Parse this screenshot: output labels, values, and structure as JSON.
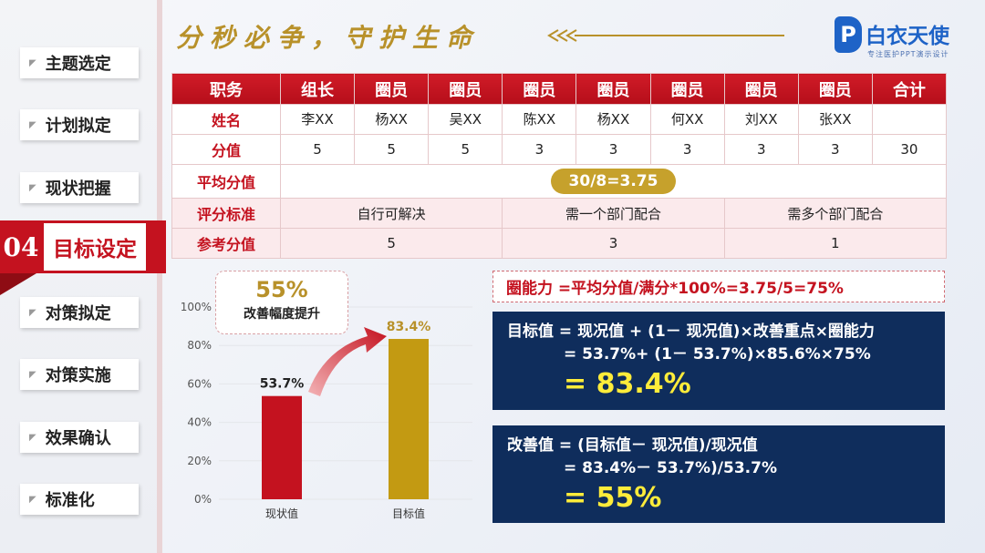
{
  "sidebar": {
    "items": [
      {
        "label": "主题选定"
      },
      {
        "label": "计划拟定"
      },
      {
        "label": "现状把握"
      },
      {
        "label": "目标设定",
        "number": "04"
      },
      {
        "label": "对策拟定"
      },
      {
        "label": "对策实施"
      },
      {
        "label": "效果确认"
      },
      {
        "label": "标准化"
      }
    ]
  },
  "header": {
    "slogan": "分秒必争，守护生命",
    "logo": {
      "badge": "P",
      "title": "白衣天使",
      "subtitle": "专注医护PPT演示设计"
    }
  },
  "table": {
    "header": [
      "职务",
      "组长",
      "圈员",
      "圈员",
      "圈员",
      "圈员",
      "圈员",
      "圈员",
      "圈员",
      "合计"
    ],
    "names_label": "姓名",
    "names": [
      "李XX",
      "杨XX",
      "吴XX",
      "陈XX",
      "杨XX",
      "何XX",
      "刘XX",
      "张XX",
      ""
    ],
    "scores_label": "分值",
    "scores": [
      "5",
      "5",
      "5",
      "3",
      "3",
      "3",
      "3",
      "3",
      "30"
    ],
    "avg_label": "平均分值",
    "avg_value": "30/8=3.75",
    "criteria_label": "评分标准",
    "criteria": [
      "自行可解决",
      "需一个部门配合",
      "需多个部门配合"
    ],
    "ref_label": "参考分值",
    "ref_scores": [
      "5",
      "3",
      "1"
    ]
  },
  "chart_data": {
    "type": "bar",
    "categories": [
      "现状值",
      "目标值"
    ],
    "values": [
      53.7,
      83.4
    ],
    "value_labels": [
      "53.7%",
      "83.4%"
    ],
    "colors": [
      "#c4121f",
      "#c39a12"
    ],
    "ylim": [
      0,
      100
    ],
    "yticks": [
      "0%",
      "20%",
      "40%",
      "60%",
      "80%",
      "100%"
    ],
    "annotation": {
      "value": "55%",
      "text": "改善幅度提升"
    }
  },
  "formulas": {
    "circle_ability": "圈能力 =平均分值/满分*100%=3.75/5=75%",
    "target": {
      "line1": "目标值 = 现况值 + (1－ 现况值)×改善重点×圈能力",
      "line2": "= 53.7%+ (1－ 53.7%)×85.6%×75%",
      "result": "= 83.4%"
    },
    "improve": {
      "line1": "改善值 = (目标值－ 现况值)/现况值",
      "line2": "= 83.4%－ 53.7%)/53.7%",
      "result": "= 55%"
    }
  }
}
